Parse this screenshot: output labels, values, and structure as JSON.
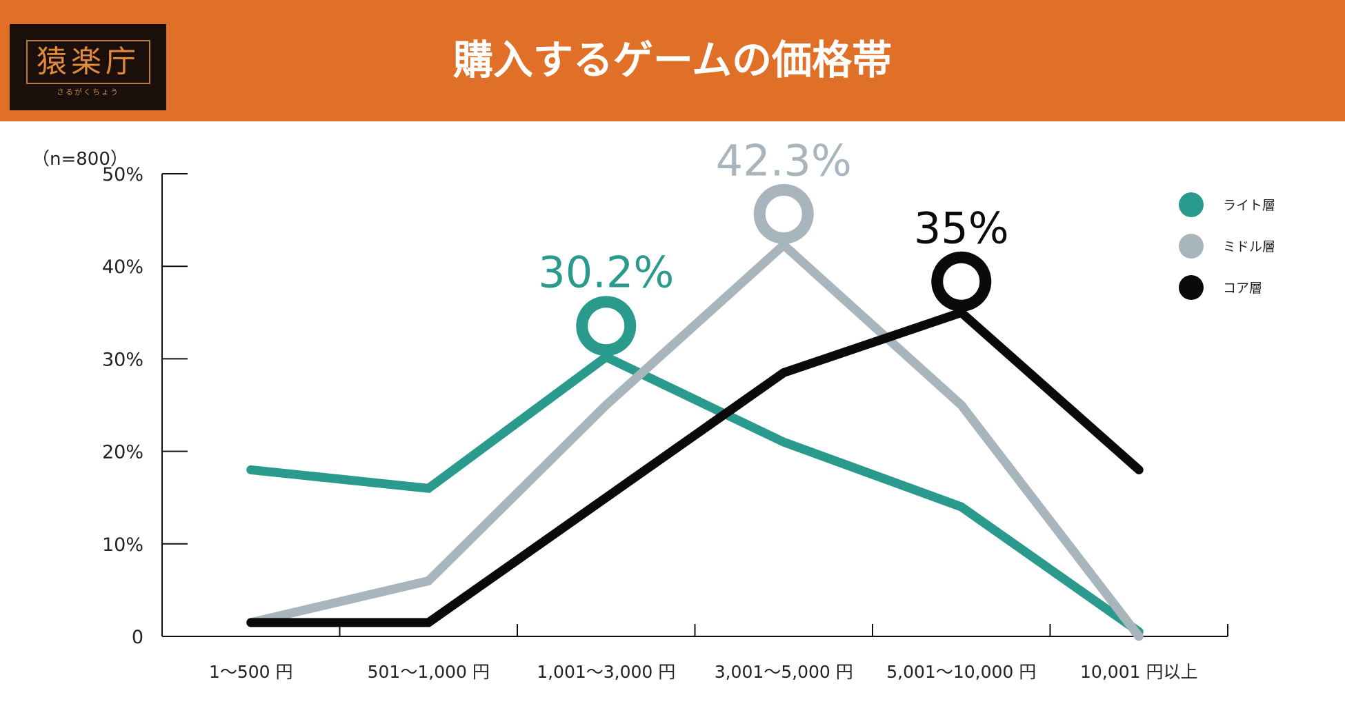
{
  "header": {
    "title": "購入するゲームの価格帯",
    "logo_text": "猿楽庁",
    "logo_subtext": "さるがくちょう",
    "bg_color": "#e07028"
  },
  "sample_note": "（n=800）",
  "chart_data": {
    "type": "line",
    "title": "購入するゲームの価格帯",
    "categories": [
      "1〜500 円",
      "501〜1,000 円",
      "1,001〜3,000 円",
      "3,001〜5,000 円",
      "5,001〜10,000 円",
      "10,001 円以上"
    ],
    "ylim": [
      0,
      50
    ],
    "yticks": [
      0,
      10,
      20,
      30,
      40,
      50
    ],
    "ytick_labels": [
      "0",
      "10%",
      "20%",
      "30%",
      "40%",
      "50%"
    ],
    "grid": false,
    "legend_position": "top-right",
    "series": [
      {
        "name": "ライト層",
        "color": "#2a9a8c",
        "values": [
          18,
          16,
          30.2,
          21,
          14,
          0.5
        ]
      },
      {
        "name": "ミドル層",
        "color": "#a9b5bc",
        "values": [
          1.5,
          6,
          25,
          42.3,
          25,
          0
        ]
      },
      {
        "name": "コア層",
        "color": "#0a0a0a",
        "values": [
          1.5,
          1.5,
          15,
          28.5,
          35,
          18
        ]
      }
    ],
    "annotations": [
      {
        "series": 0,
        "index": 2,
        "text": "30.2%"
      },
      {
        "series": 1,
        "index": 3,
        "text": "42.3%"
      },
      {
        "series": 2,
        "index": 4,
        "text": "35%"
      }
    ]
  }
}
